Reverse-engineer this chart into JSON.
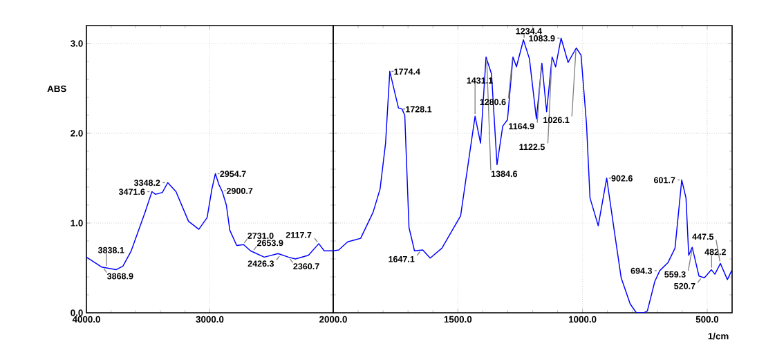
{
  "chart_data": [
    {
      "type": "line",
      "ylabel": "ABS",
      "xlim": [
        4000,
        2000
      ],
      "ylim": [
        0,
        3.2
      ],
      "xticks": [
        {
          "value": 4000,
          "label": "4000.0"
        },
        {
          "value": 3000,
          "label": "3000.0"
        }
      ],
      "yticks": [
        {
          "value": 0,
          "label": "0.0"
        },
        {
          "value": 1,
          "label": "1.0"
        },
        {
          "value": 2,
          "label": "2.0"
        },
        {
          "value": 3,
          "label": "3.0"
        }
      ],
      "grid": true,
      "x": [
        4000,
        3877,
        3760,
        3704,
        3637,
        3525,
        3469,
        3441,
        3413,
        3385,
        3341,
        3274,
        3173,
        3089,
        3022,
        2983,
        2955,
        2927,
        2899,
        2866,
        2838,
        2782,
        2726,
        2670,
        2559,
        2447,
        2363,
        2307,
        2201,
        2117,
        2073,
        2000
      ],
      "series": [
        {
          "color": "#0000ff",
          "values": [
            0.62,
            0.51,
            0.48,
            0.52,
            0.69,
            1.12,
            1.35,
            1.32,
            1.33,
            1.34,
            1.45,
            1.35,
            1.02,
            0.93,
            1.06,
            1.38,
            1.55,
            1.43,
            1.35,
            1.2,
            0.92,
            0.75,
            0.76,
            0.69,
            0.62,
            0.66,
            0.62,
            0.6,
            0.64,
            0.77,
            0.69,
            0.69
          ]
        }
      ],
      "annotations": [
        {
          "text": "3868.9",
          "x": 3868.9,
          "y": 0.51
        },
        {
          "text": "3838.1",
          "x": 3838.1,
          "y": 0.5
        },
        {
          "text": "3471.6",
          "x": 3471.6,
          "y": 1.35
        },
        {
          "text": "3348.2",
          "x": 3348.2,
          "y": 1.45
        },
        {
          "text": "2954.7",
          "x": 2954.7,
          "y": 1.55
        },
        {
          "text": "2900.7",
          "x": 2900.7,
          "y": 1.36
        },
        {
          "text": "2731.0",
          "x": 2731.0,
          "y": 0.76
        },
        {
          "text": "2653.9",
          "x": 2653.9,
          "y": 0.68
        },
        {
          "text": "2426.3",
          "x": 2426.3,
          "y": 0.65
        },
        {
          "text": "2360.7",
          "x": 2360.7,
          "y": 0.62
        },
        {
          "text": "2117.7",
          "x": 2117.7,
          "y": 0.77
        }
      ]
    },
    {
      "type": "line",
      "xlabel": "1/cm",
      "xlim": [
        2000,
        400
      ],
      "ylim": [
        0,
        3.2
      ],
      "tick_labels": "x",
      "xticks": [
        {
          "value": 2000,
          "label": "2000.0"
        },
        {
          "value": 1500,
          "label": "1500.0"
        },
        {
          "value": 1000,
          "label": "1000.0"
        },
        {
          "value": 500,
          "label": "500.0"
        }
      ],
      "grid": true,
      "x": [
        2000,
        1978,
        1942,
        1890,
        1840,
        1812,
        1790,
        1773,
        1751,
        1738,
        1724,
        1713,
        1696,
        1674,
        1641,
        1611,
        1564,
        1489,
        1453,
        1431,
        1409,
        1387,
        1365,
        1343,
        1320,
        1301,
        1279,
        1265,
        1237,
        1213,
        1185,
        1163,
        1144,
        1122,
        1108,
        1086,
        1058,
        1025,
        1006,
        984,
        970,
        937,
        903,
        873,
        845,
        809,
        784,
        754,
        740,
        710,
        690,
        657,
        629,
        602,
        585,
        574,
        560,
        533,
        511,
        483,
        469,
        447,
        419,
        400
      ],
      "series": [
        {
          "color": "#0000ff",
          "values": [
            0.69,
            0.7,
            0.79,
            0.83,
            1.12,
            1.38,
            1.89,
            2.69,
            2.43,
            2.28,
            2.27,
            2.2,
            0.95,
            0.69,
            0.7,
            0.61,
            0.72,
            1.08,
            1.77,
            2.19,
            1.89,
            2.85,
            2.66,
            1.65,
            2.08,
            2.15,
            2.85,
            2.74,
            3.04,
            2.83,
            2.16,
            2.78,
            2.24,
            2.85,
            2.74,
            3.06,
            2.79,
            2.95,
            2.87,
            2.1,
            1.28,
            0.97,
            1.5,
            0.92,
            0.39,
            0.1,
            0.0,
            0.0,
            0.02,
            0.35,
            0.47,
            0.56,
            0.72,
            1.48,
            1.28,
            0.64,
            0.73,
            0.41,
            0.39,
            0.48,
            0.43,
            0.55,
            0.37,
            0.48
          ]
        }
      ],
      "annotations": [
        {
          "text": "1774.4",
          "x": 1774.4,
          "y": 2.69
        },
        {
          "text": "1728.1",
          "x": 1728.1,
          "y": 2.27
        },
        {
          "text": "1647.1",
          "x": 1647.1,
          "y": 0.7
        },
        {
          "text": "1431.1",
          "x": 1431.1,
          "y": 2.19
        },
        {
          "text": "1384.6",
          "x": 1384.6,
          "y": 2.85
        },
        {
          "text": "1280.6",
          "x": 1280.6,
          "y": 2.85
        },
        {
          "text": "1234.4",
          "x": 1234.4,
          "y": 3.04
        },
        {
          "text": "1164.9",
          "x": 1164.9,
          "y": 2.78
        },
        {
          "text": "1122.5",
          "x": 1122.5,
          "y": 2.85
        },
        {
          "text": "1083.9",
          "x": 1083.9,
          "y": 3.06
        },
        {
          "text": "1026.1",
          "x": 1026.1,
          "y": 2.95
        },
        {
          "text": "902.6",
          "x": 902.6,
          "y": 1.5
        },
        {
          "text": "694.3",
          "x": 694.3,
          "y": 0.47
        },
        {
          "text": "601.7",
          "x": 601.7,
          "y": 1.48
        },
        {
          "text": "559.3",
          "x": 559.3,
          "y": 0.73
        },
        {
          "text": "482.2",
          "x": 482.2,
          "y": 0.48
        },
        {
          "text": "447.5",
          "x": 447.5,
          "y": 0.55
        },
        {
          "text": "520.7",
          "x": 520.7,
          "y": 0.4
        }
      ]
    }
  ]
}
